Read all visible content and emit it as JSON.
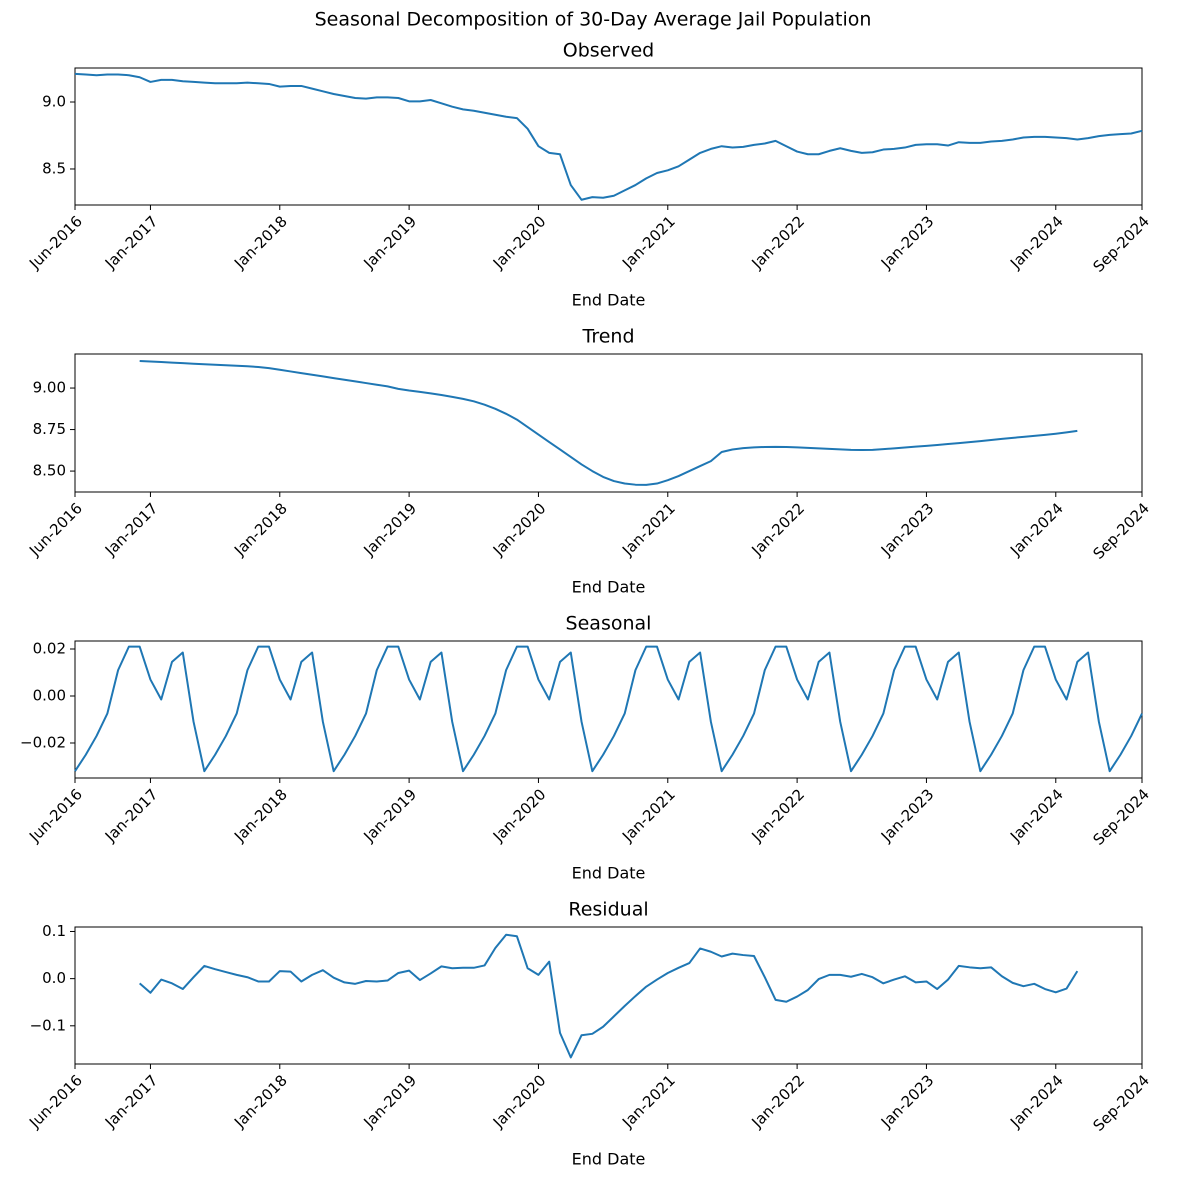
{
  "title": "Seasonal Decomposition of 30-Day Average Jail Population",
  "chart_data": [
    {
      "type": "line",
      "title": "Observed",
      "xlabel": "End Date",
      "color": "#1f77b4",
      "x": [
        "2016-06",
        "2016-07",
        "2016-08",
        "2016-09",
        "2016-10",
        "2016-11",
        "2016-12",
        "2017-01",
        "2017-02",
        "2017-03",
        "2017-04",
        "2017-05",
        "2017-06",
        "2017-07",
        "2017-08",
        "2017-09",
        "2017-10",
        "2017-11",
        "2017-12",
        "2018-01",
        "2018-02",
        "2018-03",
        "2018-04",
        "2018-05",
        "2018-06",
        "2018-07",
        "2018-08",
        "2018-09",
        "2018-10",
        "2018-11",
        "2018-12",
        "2019-01",
        "2019-02",
        "2019-03",
        "2019-04",
        "2019-05",
        "2019-06",
        "2019-07",
        "2019-08",
        "2019-09",
        "2019-10",
        "2019-11",
        "2019-12",
        "2020-01",
        "2020-02",
        "2020-03",
        "2020-04",
        "2020-05",
        "2020-06",
        "2020-07",
        "2020-08",
        "2020-09",
        "2020-10",
        "2020-11",
        "2020-12",
        "2021-01",
        "2021-02",
        "2021-03",
        "2021-04",
        "2021-05",
        "2021-06",
        "2021-07",
        "2021-08",
        "2021-09",
        "2021-10",
        "2021-11",
        "2021-12",
        "2022-01",
        "2022-02",
        "2022-03",
        "2022-04",
        "2022-05",
        "2022-06",
        "2022-07",
        "2022-08",
        "2022-09",
        "2022-10",
        "2022-11",
        "2022-12",
        "2023-01",
        "2023-02",
        "2023-03",
        "2023-04",
        "2023-05",
        "2023-06",
        "2023-07",
        "2023-08",
        "2023-09",
        "2023-10",
        "2023-11",
        "2023-12",
        "2024-01",
        "2024-02",
        "2024-03",
        "2024-04",
        "2024-05",
        "2024-06",
        "2024-07",
        "2024-08",
        "2024-09"
      ],
      "values": [
        9.21,
        9.205,
        9.2,
        9.205,
        9.205,
        9.2,
        9.185,
        9.15,
        9.165,
        9.165,
        9.155,
        9.15,
        9.145,
        9.14,
        9.14,
        9.14,
        9.145,
        9.14,
        9.135,
        9.115,
        9.12,
        9.12,
        9.1,
        9.08,
        9.06,
        9.045,
        9.03,
        9.025,
        9.035,
        9.035,
        9.03,
        9.005,
        9.005,
        9.015,
        8.99,
        8.965,
        8.945,
        8.935,
        8.92,
        8.905,
        8.89,
        8.88,
        8.8,
        8.67,
        8.62,
        8.61,
        8.38,
        8.27,
        8.29,
        8.285,
        8.3,
        8.34,
        8.38,
        8.43,
        8.47,
        8.49,
        8.52,
        8.57,
        8.62,
        8.65,
        8.67,
        8.66,
        8.665,
        8.68,
        8.69,
        8.71,
        8.67,
        8.63,
        8.61,
        8.61,
        8.635,
        8.655,
        8.635,
        8.62,
        8.625,
        8.645,
        8.65,
        8.66,
        8.68,
        8.685,
        8.685,
        8.675,
        8.7,
        8.695,
        8.695,
        8.705,
        8.71,
        8.72,
        8.735,
        8.74,
        8.74,
        8.735,
        8.73,
        8.72,
        8.73,
        8.745,
        8.755,
        8.76,
        8.765,
        8.785
      ],
      "xlim": [
        "2016-06",
        "2024-09"
      ],
      "xticks": [
        {
          "value": "2016-06",
          "label": "Jun-2016"
        },
        {
          "value": "2017-01",
          "label": "Jan-2017"
        },
        {
          "value": "2018-01",
          "label": "Jan-2018"
        },
        {
          "value": "2019-01",
          "label": "Jan-2019"
        },
        {
          "value": "2020-01",
          "label": "Jan-2020"
        },
        {
          "value": "2021-01",
          "label": "Jan-2021"
        },
        {
          "value": "2022-01",
          "label": "Jan-2022"
        },
        {
          "value": "2023-01",
          "label": "Jan-2023"
        },
        {
          "value": "2024-01",
          "label": "Jan-2024"
        },
        {
          "value": "2024-09",
          "label": "Sep-2024"
        }
      ],
      "ylim": [
        8.231,
        9.254
      ],
      "yticks": [
        {
          "value": 8.5,
          "label": "8.5"
        },
        {
          "value": 9.0,
          "label": "9.0"
        }
      ]
    },
    {
      "type": "line",
      "title": "Trend",
      "xlabel": "End Date",
      "color": "#1f77b4",
      "x": [
        "2016-06",
        "2016-07",
        "2016-08",
        "2016-09",
        "2016-10",
        "2016-11",
        "2016-12",
        "2017-01",
        "2017-02",
        "2017-03",
        "2017-04",
        "2017-05",
        "2017-06",
        "2017-07",
        "2017-08",
        "2017-09",
        "2017-10",
        "2017-11",
        "2017-12",
        "2018-01",
        "2018-02",
        "2018-03",
        "2018-04",
        "2018-05",
        "2018-06",
        "2018-07",
        "2018-08",
        "2018-09",
        "2018-10",
        "2018-11",
        "2018-12",
        "2019-01",
        "2019-02",
        "2019-03",
        "2019-04",
        "2019-05",
        "2019-06",
        "2019-07",
        "2019-08",
        "2019-09",
        "2019-10",
        "2019-11",
        "2019-12",
        "2020-01",
        "2020-02",
        "2020-03",
        "2020-04",
        "2020-05",
        "2020-06",
        "2020-07",
        "2020-08",
        "2020-09",
        "2020-10",
        "2020-11",
        "2020-12",
        "2021-01",
        "2021-02",
        "2021-03",
        "2021-04",
        "2021-05",
        "2021-06",
        "2021-07",
        "2021-08",
        "2021-09",
        "2021-10",
        "2021-11",
        "2021-12",
        "2022-01",
        "2022-02",
        "2022-03",
        "2022-04",
        "2022-05",
        "2022-06",
        "2022-07",
        "2022-08",
        "2022-09",
        "2022-10",
        "2022-11",
        "2022-12",
        "2023-01",
        "2023-02",
        "2023-03",
        "2023-04",
        "2023-05",
        "2023-06",
        "2023-07",
        "2023-08",
        "2023-09",
        "2023-10",
        "2023-11",
        "2023-12",
        "2024-01",
        "2024-02",
        "2024-03",
        "2024-04",
        "2024-05",
        "2024-06",
        "2024-07",
        "2024-08",
        "2024-09"
      ],
      "values": [
        null,
        null,
        null,
        null,
        null,
        null,
        9.163,
        9.16,
        9.157,
        9.153,
        9.15,
        9.146,
        9.143,
        9.14,
        9.137,
        9.134,
        9.131,
        9.127,
        9.12,
        9.11,
        9.1,
        9.09,
        9.08,
        9.07,
        9.06,
        9.05,
        9.04,
        9.03,
        9.02,
        9.01,
        8.995,
        8.985,
        8.977,
        8.968,
        8.958,
        8.947,
        8.935,
        8.92,
        8.9,
        8.875,
        8.845,
        8.81,
        8.765,
        8.72,
        8.675,
        8.63,
        8.585,
        8.54,
        8.5,
        8.465,
        8.44,
        8.425,
        8.418,
        8.417,
        8.425,
        8.445,
        8.47,
        8.5,
        8.53,
        8.56,
        8.615,
        8.63,
        8.638,
        8.643,
        8.645,
        8.646,
        8.645,
        8.643,
        8.64,
        8.637,
        8.634,
        8.631,
        8.628,
        8.627,
        8.628,
        8.632,
        8.637,
        8.642,
        8.647,
        8.652,
        8.657,
        8.663,
        8.668,
        8.674,
        8.68,
        8.687,
        8.694,
        8.7,
        8.706,
        8.712,
        8.718,
        8.725,
        8.733,
        8.742,
        null,
        null,
        null,
        null,
        null,
        null
      ],
      "xlim": [
        "2016-06",
        "2024-09"
      ],
      "xticks": [
        {
          "value": "2016-06",
          "label": "Jun-2016"
        },
        {
          "value": "2017-01",
          "label": "Jan-2017"
        },
        {
          "value": "2018-01",
          "label": "Jan-2018"
        },
        {
          "value": "2019-01",
          "label": "Jan-2019"
        },
        {
          "value": "2020-01",
          "label": "Jan-2020"
        },
        {
          "value": "2021-01",
          "label": "Jan-2021"
        },
        {
          "value": "2022-01",
          "label": "Jan-2022"
        },
        {
          "value": "2023-01",
          "label": "Jan-2023"
        },
        {
          "value": "2024-01",
          "label": "Jan-2024"
        },
        {
          "value": "2024-09",
          "label": "Sep-2024"
        }
      ],
      "ylim": [
        8.374,
        9.205
      ],
      "yticks": [
        {
          "value": 8.5,
          "label": "8.50"
        },
        {
          "value": 8.75,
          "label": "8.75"
        },
        {
          "value": 9.0,
          "label": "9.00"
        }
      ]
    },
    {
      "type": "line",
      "title": "Seasonal",
      "xlabel": "End Date",
      "color": "#1f77b4",
      "x": [
        "2016-06",
        "2016-07",
        "2016-08",
        "2016-09",
        "2016-10",
        "2016-11",
        "2016-12",
        "2017-01",
        "2017-02",
        "2017-03",
        "2017-04",
        "2017-05",
        "2017-06",
        "2017-07",
        "2017-08",
        "2017-09",
        "2017-10",
        "2017-11",
        "2017-12",
        "2018-01",
        "2018-02",
        "2018-03",
        "2018-04",
        "2018-05",
        "2018-06",
        "2018-07",
        "2018-08",
        "2018-09",
        "2018-10",
        "2018-11",
        "2018-12",
        "2019-01",
        "2019-02",
        "2019-03",
        "2019-04",
        "2019-05",
        "2019-06",
        "2019-07",
        "2019-08",
        "2019-09",
        "2019-10",
        "2019-11",
        "2019-12",
        "2020-01",
        "2020-02",
        "2020-03",
        "2020-04",
        "2020-05",
        "2020-06",
        "2020-07",
        "2020-08",
        "2020-09",
        "2020-10",
        "2020-11",
        "2020-12",
        "2021-01",
        "2021-02",
        "2021-03",
        "2021-04",
        "2021-05",
        "2021-06",
        "2021-07",
        "2021-08",
        "2021-09",
        "2021-10",
        "2021-11",
        "2021-12",
        "2022-01",
        "2022-02",
        "2022-03",
        "2022-04",
        "2022-05",
        "2022-06",
        "2022-07",
        "2022-08",
        "2022-09",
        "2022-10",
        "2022-11",
        "2022-12",
        "2023-01",
        "2023-02",
        "2023-03",
        "2023-04",
        "2023-05",
        "2023-06",
        "2023-07",
        "2023-08",
        "2023-09",
        "2023-10",
        "2023-11",
        "2023-12",
        "2024-01",
        "2024-02",
        "2024-03",
        "2024-04",
        "2024-05",
        "2024-06",
        "2024-07",
        "2024-08",
        "2024-09"
      ],
      "values": [
        -0.032,
        -0.025,
        -0.017,
        -0.0075,
        0.011,
        0.021,
        0.021,
        0.007,
        -0.0015,
        0.0145,
        0.0185,
        -0.011,
        -0.032,
        -0.025,
        -0.017,
        -0.0075,
        0.011,
        0.021,
        0.021,
        0.007,
        -0.0015,
        0.0145,
        0.0185,
        -0.011,
        -0.032,
        -0.025,
        -0.017,
        -0.0075,
        0.011,
        0.021,
        0.021,
        0.007,
        -0.0015,
        0.0145,
        0.0185,
        -0.011,
        -0.032,
        -0.025,
        -0.017,
        -0.0075,
        0.011,
        0.021,
        0.021,
        0.007,
        -0.0015,
        0.0145,
        0.0185,
        -0.011,
        -0.032,
        -0.025,
        -0.017,
        -0.0075,
        0.011,
        0.021,
        0.021,
        0.007,
        -0.0015,
        0.0145,
        0.0185,
        -0.011,
        -0.032,
        -0.025,
        -0.017,
        -0.0075,
        0.011,
        0.021,
        0.021,
        0.007,
        -0.0015,
        0.0145,
        0.0185,
        -0.011,
        -0.032,
        -0.025,
        -0.017,
        -0.0075,
        0.011,
        0.021,
        0.021,
        0.007,
        -0.0015,
        0.0145,
        0.0185,
        -0.011,
        -0.032,
        -0.025,
        -0.017,
        -0.0075,
        0.011,
        0.021,
        0.021,
        0.007,
        -0.0015,
        0.0145,
        0.0185,
        -0.011,
        -0.032,
        -0.025,
        -0.017,
        -0.0075
      ],
      "xlim": [
        "2016-06",
        "2024-09"
      ],
      "xticks": [
        {
          "value": "2016-06",
          "label": "Jun-2016"
        },
        {
          "value": "2017-01",
          "label": "Jan-2017"
        },
        {
          "value": "2018-01",
          "label": "Jan-2018"
        },
        {
          "value": "2019-01",
          "label": "Jan-2019"
        },
        {
          "value": "2020-01",
          "label": "Jan-2020"
        },
        {
          "value": "2021-01",
          "label": "Jan-2021"
        },
        {
          "value": "2022-01",
          "label": "Jan-2022"
        },
        {
          "value": "2023-01",
          "label": "Jan-2023"
        },
        {
          "value": "2024-01",
          "label": "Jan-2024"
        },
        {
          "value": "2024-09",
          "label": "Sep-2024"
        }
      ],
      "ylim": [
        -0.0349,
        0.0234
      ],
      "yticks": [
        {
          "value": -0.02,
          "label": "−0.02"
        },
        {
          "value": 0,
          "label": "0.00"
        },
        {
          "value": 0.02,
          "label": "0.02"
        }
      ]
    },
    {
      "type": "line",
      "title": "Residual",
      "xlabel": "End Date",
      "color": "#1f77b4",
      "x": [
        "2016-06",
        "2016-07",
        "2016-08",
        "2016-09",
        "2016-10",
        "2016-11",
        "2016-12",
        "2017-01",
        "2017-02",
        "2017-03",
        "2017-04",
        "2017-05",
        "2017-06",
        "2017-07",
        "2017-08",
        "2017-09",
        "2017-10",
        "2017-11",
        "2017-12",
        "2018-01",
        "2018-02",
        "2018-03",
        "2018-04",
        "2018-05",
        "2018-06",
        "2018-07",
        "2018-08",
        "2018-09",
        "2018-10",
        "2018-11",
        "2018-12",
        "2019-01",
        "2019-02",
        "2019-03",
        "2019-04",
        "2019-05",
        "2019-06",
        "2019-07",
        "2019-08",
        "2019-09",
        "2019-10",
        "2019-11",
        "2019-12",
        "2020-01",
        "2020-02",
        "2020-03",
        "2020-04",
        "2020-05",
        "2020-06",
        "2020-07",
        "2020-08",
        "2020-09",
        "2020-10",
        "2020-11",
        "2020-12",
        "2021-01",
        "2021-02",
        "2021-03",
        "2021-04",
        "2021-05",
        "2021-06",
        "2021-07",
        "2021-08",
        "2021-09",
        "2021-10",
        "2021-11",
        "2021-12",
        "2022-01",
        "2022-02",
        "2022-03",
        "2022-04",
        "2022-05",
        "2022-06",
        "2022-07",
        "2022-08",
        "2022-09",
        "2022-10",
        "2022-11",
        "2022-12",
        "2023-01",
        "2023-02",
        "2023-03",
        "2023-04",
        "2023-05",
        "2023-06",
        "2023-07",
        "2023-08",
        "2023-09",
        "2023-10",
        "2023-11",
        "2023-12",
        "2024-01",
        "2024-02",
        "2024-03",
        "2024-04",
        "2024-05",
        "2024-06",
        "2024-07",
        "2024-08",
        "2024-09"
      ],
      "values": [
        null,
        null,
        null,
        null,
        null,
        null,
        -0.01,
        -0.03,
        -0.002,
        -0.01,
        -0.022,
        0.003,
        0.027,
        0.02,
        0.014,
        0.008,
        0.003,
        -0.006,
        -0.006,
        0.016,
        0.015,
        -0.006,
        0.008,
        0.018,
        0.002,
        -0.008,
        -0.011,
        -0.005,
        -0.006,
        -0.004,
        0.012,
        0.017,
        -0.003,
        0.011,
        0.026,
        0.022,
        0.023,
        0.023,
        0.028,
        0.065,
        0.093,
        0.09,
        0.022,
        0.008,
        0.036,
        -0.115,
        -0.167,
        -0.12,
        -0.117,
        -0.102,
        -0.08,
        -0.058,
        -0.037,
        -0.017,
        -0.002,
        0.012,
        0.023,
        0.033,
        0.064,
        0.057,
        0.047,
        0.053,
        0.05,
        0.048,
        0.003,
        -0.045,
        -0.049,
        -0.038,
        -0.024,
        -0.001,
        0.008,
        0.008,
        0.004,
        0.01,
        0.003,
        -0.01,
        -0.002,
        0.005,
        -0.008,
        -0.006,
        -0.022,
        -0.002,
        0.027,
        0.024,
        0.022,
        0.024,
        0.005,
        -0.009,
        -0.016,
        -0.011,
        -0.022,
        -0.029,
        -0.021,
        0.016,
        null,
        null,
        null,
        null,
        null,
        null
      ],
      "xlim": [
        "2016-06",
        "2024-09"
      ],
      "xticks": [
        {
          "value": "2016-06",
          "label": "Jun-2016"
        },
        {
          "value": "2017-01",
          "label": "Jan-2017"
        },
        {
          "value": "2018-01",
          "label": "Jan-2018"
        },
        {
          "value": "2019-01",
          "label": "Jan-2019"
        },
        {
          "value": "2020-01",
          "label": "Jan-2020"
        },
        {
          "value": "2021-01",
          "label": "Jan-2021"
        },
        {
          "value": "2022-01",
          "label": "Jan-2022"
        },
        {
          "value": "2023-01",
          "label": "Jan-2023"
        },
        {
          "value": "2024-01",
          "label": "Jan-2024"
        },
        {
          "value": "2024-09",
          "label": "Sep-2024"
        }
      ],
      "ylim": [
        -0.181,
        0.1095
      ],
      "yticks": [
        {
          "value": -0.1,
          "label": "−0.1"
        },
        {
          "value": 0,
          "label": "0.0"
        },
        {
          "value": 0.1,
          "label": "0.1"
        }
      ]
    }
  ]
}
